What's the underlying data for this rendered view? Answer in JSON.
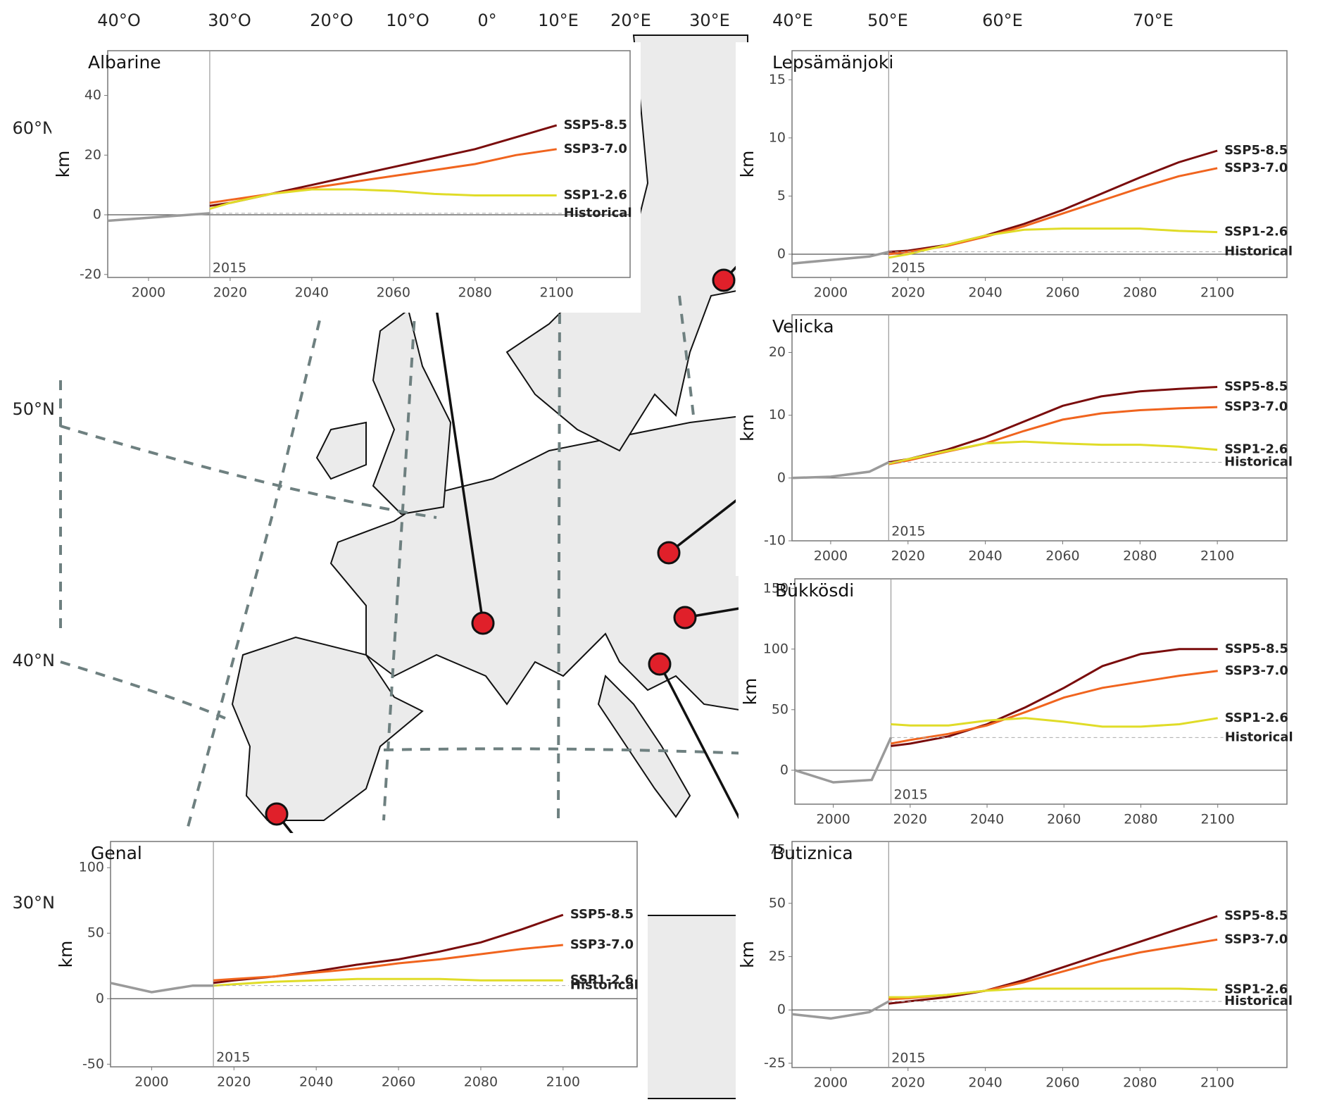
{
  "map": {
    "longitude_labels": [
      "40°O",
      "30°O",
      "20°O",
      "10°O",
      "0°",
      "10°E",
      "20°E",
      "30°E",
      "40°E",
      "50°E",
      "60°E",
      "70°E"
    ],
    "latitude_labels": [
      "60°N",
      "50°N",
      "40°N",
      "30°N"
    ]
  },
  "chart_data": [
    {
      "type": "line",
      "title": "Albarine",
      "y_label": "km",
      "annotation": "2015",
      "x": [
        1990,
        2000,
        2010,
        2015,
        2020,
        2030,
        2040,
        2050,
        2060,
        2070,
        2080,
        2090,
        2100
      ],
      "xlim": [
        1990,
        2118
      ],
      "xticks": [
        2000,
        2020,
        2040,
        2060,
        2080,
        2100
      ],
      "ylim": [
        -21,
        55
      ],
      "yticks": [
        -20,
        0,
        20,
        40
      ],
      "series": [
        {
          "name": "SSP5-8.5",
          "color": "#7a0c0c",
          "values": [
            null,
            null,
            null,
            3,
            4,
            7,
            10,
            13,
            16,
            19,
            22,
            26,
            30
          ]
        },
        {
          "name": "SSP3-7.0",
          "color": "#f0641e",
          "values": [
            null,
            null,
            null,
            4,
            5,
            7,
            9,
            11,
            13,
            15,
            17,
            20,
            22
          ]
        },
        {
          "name": "SSP1-2.6",
          "color": "#e0dc28",
          "values": [
            null,
            null,
            null,
            2,
            4,
            7,
            8.5,
            8.5,
            8,
            7,
            6.5,
            6.5,
            6.5
          ]
        },
        {
          "name": "Historical",
          "color": "#9a9a9a",
          "values": [
            -2,
            -1,
            0,
            0.5,
            null,
            null,
            null,
            null,
            null,
            null,
            null,
            null,
            null
          ]
        }
      ]
    },
    {
      "type": "line",
      "title": "Lepsämänjoki",
      "y_label": "km",
      "annotation": "2015",
      "x": [
        1990,
        2000,
        2010,
        2015,
        2020,
        2030,
        2040,
        2050,
        2060,
        2070,
        2080,
        2090,
        2100
      ],
      "xlim": [
        1990,
        2118
      ],
      "xticks": [
        2000,
        2020,
        2040,
        2060,
        2080,
        2100
      ],
      "ylim": [
        -2,
        17.5
      ],
      "yticks": [
        0,
        5,
        10,
        15
      ],
      "series": [
        {
          "name": "SSP5-8.5",
          "color": "#7a0c0c",
          "values": [
            null,
            null,
            null,
            0.2,
            0.3,
            0.8,
            1.6,
            2.6,
            3.8,
            5.2,
            6.6,
            7.9,
            8.9
          ]
        },
        {
          "name": "SSP3-7.0",
          "color": "#f0641e",
          "values": [
            null,
            null,
            null,
            0,
            0.2,
            0.7,
            1.5,
            2.4,
            3.5,
            4.6,
            5.7,
            6.7,
            7.4
          ]
        },
        {
          "name": "SSP1-2.6",
          "color": "#e0dc28",
          "values": [
            null,
            null,
            null,
            -0.3,
            0,
            0.8,
            1.6,
            2.1,
            2.2,
            2.2,
            2.2,
            2,
            1.9
          ]
        },
        {
          "name": "Historical",
          "color": "#9a9a9a",
          "values": [
            -0.8,
            -0.5,
            -0.2,
            0.2,
            null,
            null,
            null,
            null,
            null,
            null,
            null,
            null,
            null
          ]
        }
      ]
    },
    {
      "type": "line",
      "title": "Velicka",
      "y_label": "km",
      "annotation": "2015",
      "x": [
        1990,
        2000,
        2010,
        2015,
        2020,
        2030,
        2040,
        2050,
        2060,
        2070,
        2080,
        2090,
        2100
      ],
      "xlim": [
        1990,
        2118
      ],
      "xticks": [
        2000,
        2020,
        2040,
        2060,
        2080,
        2100
      ],
      "ylim": [
        -10,
        26
      ],
      "yticks": [
        -10,
        0,
        10,
        20
      ],
      "series": [
        {
          "name": "SSP5-8.5",
          "color": "#7a0c0c",
          "values": [
            null,
            null,
            null,
            2.5,
            3,
            4.5,
            6.5,
            9,
            11.5,
            13,
            13.8,
            14.2,
            14.5
          ]
        },
        {
          "name": "SSP3-7.0",
          "color": "#f0641e",
          "values": [
            null,
            null,
            null,
            2.2,
            2.8,
            4.2,
            5.5,
            7.5,
            9.3,
            10.3,
            10.8,
            11.1,
            11.3
          ]
        },
        {
          "name": "SSP1-2.6",
          "color": "#e0dc28",
          "values": [
            null,
            null,
            null,
            2.3,
            3,
            4.3,
            5.5,
            5.8,
            5.5,
            5.3,
            5.3,
            5,
            4.5
          ]
        },
        {
          "name": "Historical",
          "color": "#9a9a9a",
          "values": [
            0,
            0.2,
            1,
            2.5,
            null,
            null,
            null,
            null,
            null,
            null,
            null,
            null,
            null
          ]
        }
      ]
    },
    {
      "type": "line",
      "title": "Bükkösdi",
      "y_label": "km",
      "annotation": "2015",
      "x": [
        1990,
        2000,
        2010,
        2015,
        2020,
        2030,
        2040,
        2050,
        2060,
        2070,
        2080,
        2090,
        2100
      ],
      "xlim": [
        1990,
        2118
      ],
      "xticks": [
        2000,
        2020,
        2040,
        2060,
        2080,
        2100
      ],
      "ylim": [
        -28,
        158
      ],
      "yticks": [
        0,
        50,
        100,
        150
      ],
      "series": [
        {
          "name": "SSP5-8.5",
          "color": "#7a0c0c",
          "values": [
            null,
            null,
            null,
            20,
            22,
            28,
            38,
            52,
            68,
            86,
            96,
            100,
            100
          ]
        },
        {
          "name": "SSP3-7.0",
          "color": "#f0641e",
          "values": [
            null,
            null,
            null,
            22,
            25,
            30,
            37,
            48,
            60,
            68,
            73,
            78,
            82
          ]
        },
        {
          "name": "SSP1-2.6",
          "color": "#e0dc28",
          "values": [
            null,
            null,
            null,
            38,
            37,
            37,
            41,
            43,
            40,
            36,
            36,
            38,
            43
          ]
        },
        {
          "name": "Historical",
          "color": "#9a9a9a",
          "values": [
            0,
            -10,
            -8,
            27,
            null,
            null,
            null,
            null,
            null,
            null,
            null,
            null,
            null
          ]
        }
      ]
    },
    {
      "type": "line",
      "title": "Genal",
      "y_label": "km",
      "annotation": "2015",
      "x": [
        1990,
        2000,
        2010,
        2015,
        2020,
        2030,
        2040,
        2050,
        2060,
        2070,
        2080,
        2090,
        2100
      ],
      "xlim": [
        1990,
        2118
      ],
      "xticks": [
        2000,
        2020,
        2040,
        2060,
        2080,
        2100
      ],
      "ylim": [
        -52,
        120
      ],
      "yticks": [
        -50,
        0,
        50,
        100
      ],
      "series": [
        {
          "name": "SSP5-8.5",
          "color": "#7a0c0c",
          "values": [
            null,
            null,
            null,
            12,
            14,
            17,
            21,
            26,
            30,
            36,
            43,
            53,
            64
          ]
        },
        {
          "name": "SSP3-7.0",
          "color": "#f0641e",
          "values": [
            null,
            null,
            null,
            14,
            15,
            17,
            20,
            23,
            27,
            30,
            34,
            38,
            41
          ]
        },
        {
          "name": "SSP1-2.6",
          "color": "#e0dc28",
          "values": [
            null,
            null,
            null,
            10,
            11,
            13,
            14,
            15,
            15,
            15,
            14,
            14,
            14
          ]
        },
        {
          "name": "Historical",
          "color": "#9a9a9a",
          "values": [
            12,
            5,
            10,
            10,
            null,
            null,
            null,
            null,
            null,
            null,
            null,
            null,
            null
          ]
        }
      ]
    },
    {
      "type": "line",
      "title": "Butiznica",
      "y_label": "km",
      "annotation": "2015",
      "x": [
        1990,
        2000,
        2010,
        2015,
        2020,
        2030,
        2040,
        2050,
        2060,
        2070,
        2080,
        2090,
        2100
      ],
      "xlim": [
        1990,
        2118
      ],
      "xticks": [
        2000,
        2020,
        2040,
        2060,
        2080,
        2100
      ],
      "ylim": [
        -27,
        79
      ],
      "yticks": [
        -25,
        0,
        25,
        50,
        75
      ],
      "series": [
        {
          "name": "SSP5-8.5",
          "color": "#7a0c0c",
          "values": [
            null,
            null,
            null,
            3,
            4,
            6,
            9,
            14,
            20,
            26,
            32,
            38,
            44
          ]
        },
        {
          "name": "SSP3-7.0",
          "color": "#f0641e",
          "values": [
            null,
            null,
            null,
            5,
            5.5,
            7,
            9,
            13,
            18,
            23,
            27,
            30,
            33
          ]
        },
        {
          "name": "SSP1-2.6",
          "color": "#e0dc28",
          "values": [
            null,
            null,
            null,
            6,
            6,
            7,
            9,
            10,
            10,
            10,
            10,
            10,
            9.5
          ]
        },
        {
          "name": "Historical",
          "color": "#9a9a9a",
          "values": [
            -2,
            -4,
            -1,
            4,
            null,
            null,
            null,
            null,
            null,
            null,
            null,
            null,
            null
          ]
        }
      ]
    }
  ]
}
